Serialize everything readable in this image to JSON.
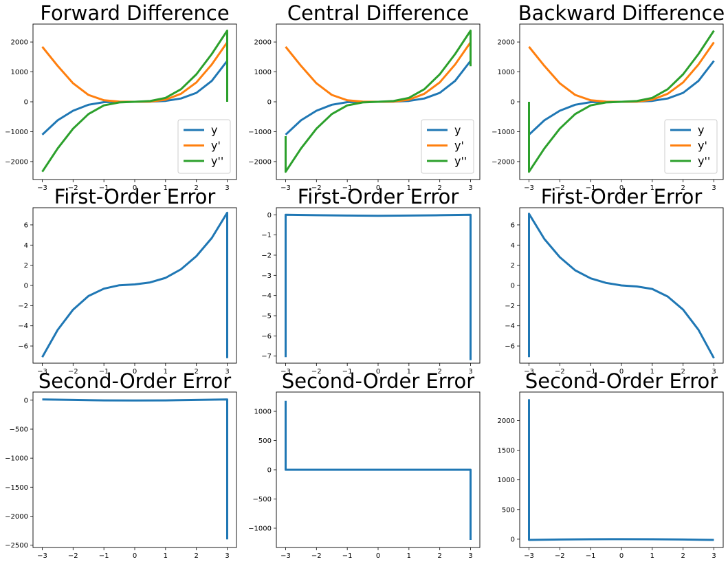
{
  "colors": {
    "y": "#1f77b4",
    "dy": "#ff7f0e",
    "ddy": "#2ca02c",
    "frame": "#000000",
    "legend_border": "#cccccc"
  },
  "chart_data": [
    {
      "type": "line",
      "title": "Forward Difference",
      "xlim": [
        -3.3,
        3.3
      ],
      "ylim": [
        -2600,
        2600
      ],
      "xticks": [
        -3,
        -2,
        -1,
        0,
        1,
        2,
        3
      ],
      "yticks": [
        -2000,
        -1000,
        0,
        1000,
        2000
      ],
      "legend": "lower-right",
      "grid": false,
      "series": [
        {
          "name": "y",
          "role": "y",
          "x": [
            -3,
            -2.5,
            -2,
            -1.5,
            -1,
            -0.5,
            0,
            0.5,
            1,
            1.5,
            2,
            2.5,
            3
          ],
          "values": [
            -1100,
            -620,
            -300,
            -100,
            -12,
            0,
            0,
            5,
            30,
            110,
            300,
            700,
            1370
          ]
        },
        {
          "name": "y'",
          "role": "dy",
          "x": [
            -3,
            -2.5,
            -2,
            -1.5,
            -1,
            -0.5,
            0,
            0.5,
            1,
            1.5,
            2,
            2.5,
            3
          ],
          "values": [
            1840,
            1200,
            620,
            230,
            50,
            5,
            0,
            8,
            70,
            270,
            650,
            1250,
            1990
          ]
        },
        {
          "name": "y''",
          "role": "ddy",
          "x": [
            -3,
            -2.5,
            -2,
            -1.5,
            -1,
            -0.5,
            0,
            0.5,
            1,
            1.5,
            2,
            2.5,
            3,
            3
          ],
          "values": [
            -2340,
            -1560,
            -900,
            -410,
            -120,
            -20,
            0,
            25,
            130,
            420,
            920,
            1600,
            2380,
            0
          ]
        }
      ]
    },
    {
      "type": "line",
      "title": "Central Difference",
      "xlim": [
        -3.3,
        3.3
      ],
      "ylim": [
        -2600,
        2600
      ],
      "xticks": [
        -3,
        -2,
        -1,
        0,
        1,
        2,
        3
      ],
      "yticks": [
        -2000,
        -1000,
        0,
        1000,
        2000
      ],
      "legend": "lower-right",
      "grid": false,
      "series": [
        {
          "name": "y",
          "role": "y",
          "x": [
            -3,
            -2.5,
            -2,
            -1.5,
            -1,
            -0.5,
            0,
            0.5,
            1,
            1.5,
            2,
            2.5,
            3
          ],
          "values": [
            -1100,
            -620,
            -300,
            -100,
            -12,
            0,
            0,
            5,
            30,
            110,
            300,
            700,
            1370
          ]
        },
        {
          "name": "y'",
          "role": "dy",
          "x": [
            -3,
            -2.5,
            -2,
            -1.5,
            -1,
            -0.5,
            0,
            0.5,
            1,
            1.5,
            2,
            2.5,
            3
          ],
          "values": [
            1840,
            1200,
            620,
            230,
            50,
            5,
            0,
            8,
            70,
            270,
            650,
            1250,
            1990
          ]
        },
        {
          "name": "y''",
          "role": "ddy",
          "x": [
            -3,
            -3,
            -2.5,
            -2,
            -1.5,
            -1,
            -0.5,
            0,
            0.5,
            1,
            1.5,
            2,
            2.5,
            3,
            3
          ],
          "values": [
            -1150,
            -2340,
            -1560,
            -900,
            -410,
            -120,
            -20,
            0,
            25,
            130,
            420,
            920,
            1600,
            2380,
            1190
          ]
        }
      ]
    },
    {
      "type": "line",
      "title": "Backward Difference",
      "xlim": [
        -3.3,
        3.3
      ],
      "ylim": [
        -2600,
        2600
      ],
      "xticks": [
        -3,
        -2,
        -1,
        0,
        1,
        2,
        3
      ],
      "yticks": [
        -2000,
        -1000,
        0,
        1000,
        2000
      ],
      "legend": "lower-right",
      "grid": false,
      "series": [
        {
          "name": "y",
          "role": "y",
          "x": [
            -3,
            -2.5,
            -2,
            -1.5,
            -1,
            -0.5,
            0,
            0.5,
            1,
            1.5,
            2,
            2.5,
            3
          ],
          "values": [
            -1100,
            -620,
            -300,
            -100,
            -12,
            0,
            0,
            5,
            30,
            110,
            300,
            700,
            1370
          ]
        },
        {
          "name": "y'",
          "role": "dy",
          "x": [
            -3,
            -2.5,
            -2,
            -1.5,
            -1,
            -0.5,
            0,
            0.5,
            1,
            1.5,
            2,
            2.5,
            3
          ],
          "values": [
            1840,
            1200,
            620,
            230,
            50,
            5,
            0,
            8,
            70,
            270,
            650,
            1250,
            1990
          ]
        },
        {
          "name": "y''",
          "role": "ddy",
          "x": [
            -3,
            -3,
            -2.5,
            -2,
            -1.5,
            -1,
            -0.5,
            0,
            0.5,
            1,
            1.5,
            2,
            2.5,
            3
          ],
          "values": [
            0,
            -2340,
            -1560,
            -900,
            -410,
            -120,
            -20,
            0,
            25,
            130,
            420,
            920,
            1600,
            2380
          ]
        }
      ]
    },
    {
      "type": "line",
      "title": "First-Order Error",
      "xlim": [
        -3.3,
        3.3
      ],
      "ylim": [
        -7.7,
        7.7
      ],
      "xticks": [
        -3,
        -2,
        -1,
        0,
        1,
        2,
        3
      ],
      "yticks": [
        -6,
        -4,
        -2,
        0,
        2,
        4,
        6
      ],
      "grid": false,
      "series": [
        {
          "role": "y",
          "x": [
            -3,
            -2.5,
            -2,
            -1.5,
            -1,
            -0.5,
            0,
            0.5,
            1,
            1.5,
            2,
            2.5,
            3,
            3
          ],
          "values": [
            -7.1,
            -4.4,
            -2.4,
            -1.05,
            -0.32,
            0.02,
            0.1,
            0.3,
            0.75,
            1.6,
            2.9,
            4.7,
            7.2,
            -7.2
          ]
        }
      ]
    },
    {
      "type": "line",
      "title": "First-Order Error",
      "xlim": [
        -3.3,
        3.3
      ],
      "ylim": [
        -7.35,
        0.35
      ],
      "xticks": [
        -3,
        -2,
        -1,
        0,
        1,
        2,
        3
      ],
      "yticks": [
        -7,
        -6,
        -5,
        -4,
        -3,
        -2,
        -1,
        0
      ],
      "grid": false,
      "series": [
        {
          "role": "y",
          "x": [
            -3,
            -3,
            -2,
            -1,
            0,
            1,
            2,
            3,
            3
          ],
          "values": [
            -7.05,
            0.0,
            -0.02,
            -0.04,
            -0.05,
            -0.04,
            -0.02,
            0.0,
            -7.2
          ]
        }
      ]
    },
    {
      "type": "line",
      "title": "First-Order Error",
      "xlim": [
        -3.3,
        3.3
      ],
      "ylim": [
        -7.7,
        7.7
      ],
      "xticks": [
        -3,
        -2,
        -1,
        0,
        1,
        2,
        3
      ],
      "yticks": [
        -6,
        -4,
        -2,
        0,
        2,
        4,
        6
      ],
      "grid": false,
      "series": [
        {
          "role": "y",
          "x": [
            -3,
            -3,
            -2.5,
            -2,
            -1.5,
            -1,
            -0.5,
            0,
            0.5,
            1,
            1.5,
            2,
            2.5,
            3
          ],
          "values": [
            -7.1,
            7.1,
            4.6,
            2.8,
            1.5,
            0.7,
            0.25,
            0.0,
            -0.1,
            -0.35,
            -1.1,
            -2.4,
            -4.4,
            -7.2
          ]
        }
      ]
    },
    {
      "type": "line",
      "title": "Second-Order Error",
      "xlim": [
        -3.3,
        3.3
      ],
      "ylim": [
        -2540,
        140
      ],
      "xticks": [
        -3,
        -2,
        -1,
        0,
        1,
        2,
        3
      ],
      "yticks": [
        -2500,
        -2000,
        -1500,
        -1000,
        -500,
        0
      ],
      "grid": false,
      "series": [
        {
          "role": "y",
          "x": [
            -3,
            -2,
            -1,
            0,
            1,
            2,
            3,
            3
          ],
          "values": [
            12,
            5,
            -3,
            -6,
            -3,
            5,
            12,
            -2400
          ]
        }
      ]
    },
    {
      "type": "line",
      "title": "Second-Order Error",
      "xlim": [
        -3.3,
        3.3
      ],
      "ylim": [
        -1330,
        1330
      ],
      "xticks": [
        -3,
        -2,
        -1,
        0,
        1,
        2,
        3
      ],
      "yticks": [
        -1000,
        -500,
        0,
        500,
        1000
      ],
      "grid": false,
      "series": [
        {
          "role": "y",
          "x": [
            -3,
            -3,
            -2,
            -1,
            0,
            1,
            2,
            3,
            3
          ],
          "values": [
            1180,
            0,
            0,
            0,
            0,
            0,
            0,
            0,
            -1200
          ]
        }
      ]
    },
    {
      "type": "line",
      "title": "Second-Order Error",
      "xlim": [
        -3.3,
        3.3
      ],
      "ylim": [
        -140,
        2480
      ],
      "xticks": [
        -3,
        -2,
        -1,
        0,
        1,
        2,
        3
      ],
      "yticks": [
        0,
        500,
        1000,
        1500,
        2000
      ],
      "grid": false,
      "series": [
        {
          "role": "y",
          "x": [
            -3,
            -3,
            -2,
            -1,
            0,
            1,
            2,
            3
          ],
          "values": [
            2360,
            -12,
            -6,
            -1,
            0,
            -1,
            -6,
            -12
          ]
        }
      ]
    }
  ]
}
